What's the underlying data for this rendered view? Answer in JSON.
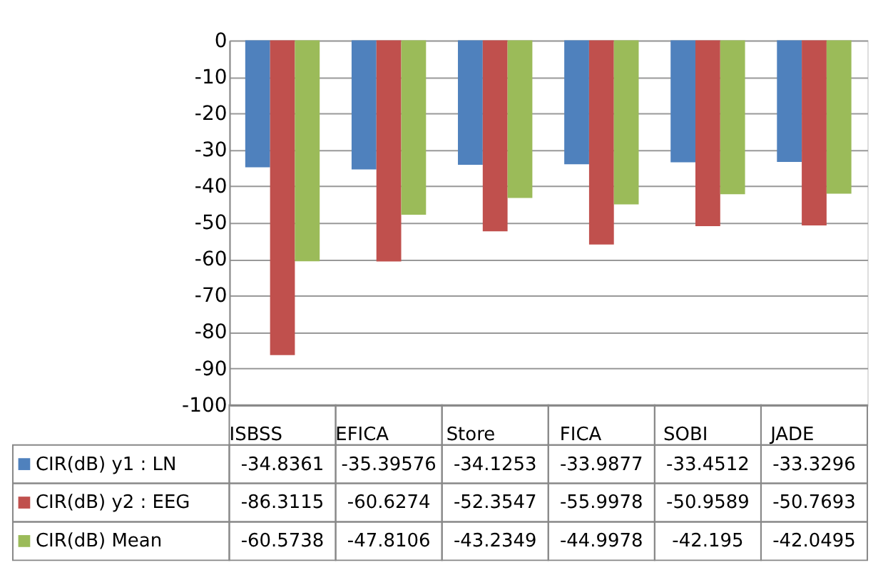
{
  "chart_data": {
    "type": "bar",
    "categories": [
      "ISBSS",
      "EFICA",
      "Store",
      "FICA",
      "SOBI",
      "JADE"
    ],
    "series": [
      {
        "name": "CIR(dB) y1 : LN",
        "color": "#4f81bd",
        "values": [
          -34.8361,
          -35.39576,
          -34.1253,
          -33.9877,
          -33.4512,
          -33.3296
        ]
      },
      {
        "name": "CIR(dB) y2 : EEG",
        "color": "#c0504d",
        "values": [
          -86.3115,
          -60.6274,
          -52.3547,
          -55.9978,
          -50.9589,
          -50.7693
        ]
      },
      {
        "name": "CIR(dB) Mean",
        "color": "#9bbb59",
        "values": [
          -60.5738,
          -47.8106,
          -43.2349,
          -44.9978,
          -42.195,
          -42.0495
        ]
      }
    ],
    "ylim": [
      -100,
      0
    ],
    "yticks": [
      -100,
      -90,
      -80,
      -70,
      -60,
      -50,
      -40,
      -30,
      -20,
      -10,
      0
    ],
    "grid": "y",
    "legend": "bottom left",
    "data_labels": true
  }
}
